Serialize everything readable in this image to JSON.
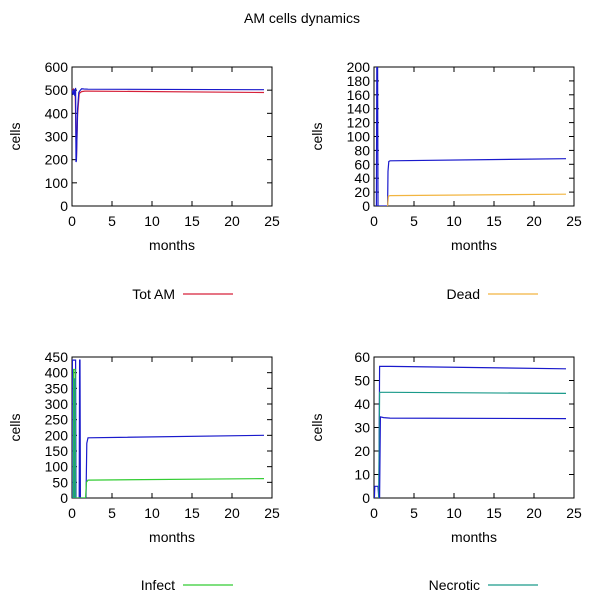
{
  "title": "AM cells  dynamics",
  "chart_data": [
    {
      "type": "line",
      "title": "",
      "xlabel": "months",
      "ylabel": "cells",
      "xlim": [
        0,
        25
      ],
      "ylim": [
        0,
        600
      ],
      "xticks": [
        0,
        5,
        10,
        15,
        20,
        25
      ],
      "yticks": [
        0,
        100,
        200,
        300,
        400,
        500,
        600
      ],
      "grid": false,
      "legend": "below",
      "legend_label": "Tot AM",
      "legend_color": "#d6213a",
      "series": [
        {
          "color": "#d6213a",
          "x": [
            0,
            0.2,
            0.4,
            0.55,
            0.7,
            0.9,
            1.2,
            1.6,
            2,
            24
          ],
          "y": [
            498,
            505,
            490,
            200,
            395,
            485,
            494,
            496,
            496,
            490
          ]
        },
        {
          "color": "#1a1acc",
          "x": [
            0,
            0.15,
            0.25,
            0.35,
            0.45,
            0.5,
            0.55,
            0.7,
            0.85,
            1.0,
            1.2,
            1.5,
            2,
            24
          ],
          "y": [
            500,
            480,
            505,
            475,
            510,
            190,
            195,
            420,
            490,
            498,
            506,
            505,
            504,
            502
          ]
        }
      ]
    },
    {
      "type": "line",
      "title": "",
      "xlabel": "months",
      "ylabel": "cells",
      "xlim": [
        0,
        25
      ],
      "ylim": [
        0,
        200
      ],
      "xticks": [
        0,
        5,
        10,
        15,
        20,
        25
      ],
      "yticks": [
        0,
        20,
        40,
        60,
        80,
        100,
        120,
        140,
        160,
        180,
        200
      ],
      "grid": false,
      "legend": "below",
      "legend_label": "Dead",
      "legend_color": "#f2b540",
      "series": [
        {
          "color": "#1a1acc",
          "x": [
            0.3,
            0.35,
            0.45,
            0.5,
            1.7,
            1.75,
            1.85,
            2.0,
            24
          ],
          "y": [
            0,
            200,
            200,
            0,
            0,
            50,
            64,
            65,
            68
          ]
        },
        {
          "color": "#f2b540",
          "x": [
            1.7,
            1.8,
            2.0,
            24
          ],
          "y": [
            0,
            14,
            15,
            17
          ]
        }
      ]
    },
    {
      "type": "line",
      "title": "",
      "xlabel": "months",
      "ylabel": "cells",
      "xlim": [
        0,
        25
      ],
      "ylim": [
        0,
        450
      ],
      "xticks": [
        0,
        5,
        10,
        15,
        20,
        25
      ],
      "yticks": [
        0,
        50,
        100,
        150,
        200,
        250,
        300,
        350,
        400,
        450
      ],
      "grid": false,
      "legend": "below",
      "legend_label": "Infect",
      "legend_color": "#33cc33",
      "series": [
        {
          "color": "#1a1acc",
          "x": [
            0,
            0.05,
            0.1,
            0.45,
            0.5,
            0.9,
            0.95,
            1.0,
            1.05,
            1.75,
            1.85,
            2.0,
            24
          ],
          "y": [
            0,
            440,
            440,
            440,
            0,
            0,
            440,
            440,
            0,
            0,
            175,
            192,
            200
          ]
        },
        {
          "color": "#33cc33",
          "x": [
            0.15,
            0.2,
            0.4,
            0.45,
            1.7,
            1.8,
            2.0,
            24
          ],
          "y": [
            0,
            410,
            410,
            0,
            0,
            50,
            57,
            62
          ]
        },
        {
          "color": "#1a9a8a",
          "x": [
            0.25,
            0.3,
            0.35,
            0.4
          ],
          "y": [
            0,
            380,
            380,
            0
          ]
        }
      ]
    },
    {
      "type": "line",
      "title": "",
      "xlabel": "months",
      "ylabel": "cells",
      "xlim": [
        0,
        25
      ],
      "ylim": [
        0,
        60
      ],
      "xticks": [
        0,
        5,
        10,
        15,
        20,
        25
      ],
      "yticks": [
        0,
        10,
        20,
        30,
        40,
        50,
        60
      ],
      "grid": false,
      "legend": "below",
      "legend_label": "Necrotic",
      "legend_color": "#1a9a8a",
      "series": [
        {
          "color": "#1a1acc",
          "x": [
            0.05,
            0.1,
            0.5,
            0.6,
            0.7,
            1.2,
            2,
            24
          ],
          "y": [
            0,
            5,
            5,
            0,
            56,
            56,
            56,
            55
          ]
        },
        {
          "color": "#1a9a8a",
          "x": [
            0.6,
            0.7,
            1.2,
            2,
            24
          ],
          "y": [
            0,
            45,
            45,
            45,
            44.5
          ]
        },
        {
          "color": "#1a1acc",
          "x": [
            0.7,
            0.8,
            1.2,
            2,
            24
          ],
          "y": [
            0,
            34.5,
            34.2,
            34,
            33.8
          ]
        }
      ]
    }
  ]
}
